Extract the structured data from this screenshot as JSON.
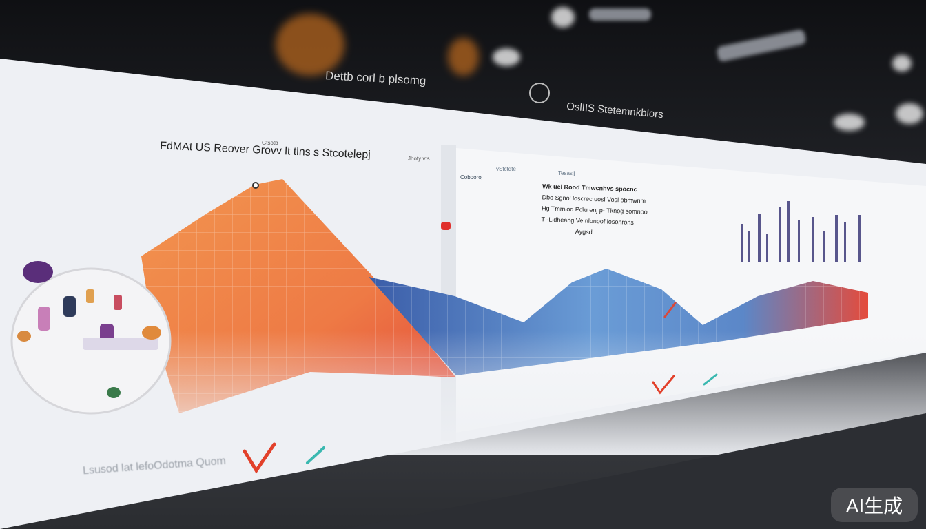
{
  "header": {
    "left_label": "Dettb corl  b plsomg",
    "right_label": "OslIIS  Stetemnkblors"
  },
  "left_panel": {
    "title": "FdMAt US Reover  Grovv lt tlns s Stcotelepj",
    "small_label_top": "Gtsotb",
    "small_label_right": "Jhoty vts"
  },
  "right_panel": {
    "small_label_1": "Cobooroj",
    "small_label_2": "vStctdte",
    "small_label_3": "Tesasjj",
    "text_lines": [
      "Wk  uel Rood  Tmwcnhvs spocnc",
      "Dbo  Sgnol loscrec uosl  Vosl obmwnm",
      "Hg  Tmmiod  Pdlu enj p-  Tknog  somnoo",
      "T  -Lidheang  Ve nlonoof  losonrohs",
      "Aygsd"
    ]
  },
  "footer": {
    "caption": "Lsusod lat lefoOdotma  Quom"
  },
  "colors": {
    "orange": "#f08a4b",
    "red": "#e4483a",
    "blue": "#3e63ad",
    "light_blue": "#6e9fd6",
    "purple_bars": "#3d3a7a",
    "screen": "#eef0f4"
  },
  "watermark": "AI生成"
}
